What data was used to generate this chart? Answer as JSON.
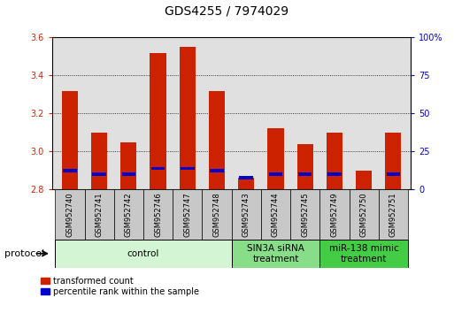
{
  "title": "GDS4255 / 7974029",
  "samples": [
    "GSM952740",
    "GSM952741",
    "GSM952742",
    "GSM952746",
    "GSM952747",
    "GSM952748",
    "GSM952743",
    "GSM952744",
    "GSM952745",
    "GSM952749",
    "GSM952750",
    "GSM952751"
  ],
  "red_values": [
    3.32,
    3.1,
    3.05,
    3.52,
    3.55,
    3.32,
    2.86,
    3.12,
    3.04,
    3.1,
    2.9,
    3.1
  ],
  "blue_positions": [
    2.9,
    2.88,
    2.88,
    2.91,
    2.91,
    2.9,
    2.86,
    2.88,
    2.88,
    2.88,
    0.0,
    2.88
  ],
  "ymin": 2.8,
  "ymax": 3.6,
  "yticks_left": [
    2.8,
    3.0,
    3.2,
    3.4,
    3.6
  ],
  "yticks_right": [
    0,
    25,
    50,
    75,
    100
  ],
  "groups": [
    {
      "label": "control",
      "indices": [
        0,
        1,
        2,
        3,
        4,
        5
      ],
      "color": "#d4f5d4"
    },
    {
      "label": "SIN3A siRNA\ntreatment",
      "indices": [
        6,
        7,
        8
      ],
      "color": "#88dd88"
    },
    {
      "label": "miR-138 mimic\ntreatment",
      "indices": [
        9,
        10,
        11
      ],
      "color": "#44cc44"
    }
  ],
  "bar_color_red": "#cc2200",
  "bar_color_blue": "#0000cc",
  "bar_width": 0.55,
  "bg_plot": "#e0e0e0",
  "sample_box_color": "#c8c8c8",
  "protocol_label": "protocol",
  "legend_red": "transformed count",
  "legend_blue": "percentile rank within the sample",
  "title_fontsize": 10,
  "tick_fontsize": 7,
  "sample_fontsize": 6,
  "group_fontsize": 7.5,
  "legend_fontsize": 7
}
